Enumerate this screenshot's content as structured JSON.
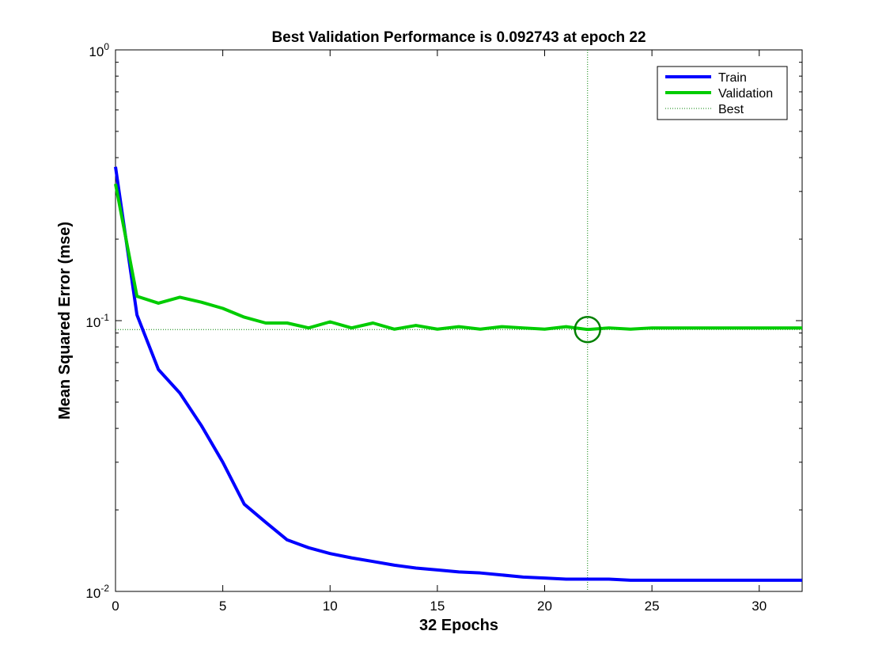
{
  "chart_data": {
    "type": "line",
    "title": "Best Validation Performance is 0.092743 at epoch 22",
    "xlabel": "32 Epochs",
    "ylabel": "Mean Squared Error  (mse)",
    "xlim": [
      0,
      32
    ],
    "ylim": [
      0.01,
      1
    ],
    "yscale": "log",
    "x_ticks": [
      0,
      5,
      10,
      15,
      20,
      25,
      30
    ],
    "x_tick_labels": [
      "0",
      "5",
      "10",
      "15",
      "20",
      "25",
      "30"
    ],
    "y_ticks": [
      {
        "value": 1,
        "base": "10",
        "exp": "0"
      },
      {
        "value": 0.1,
        "base": "10",
        "exp": "-1"
      },
      {
        "value": 0.01,
        "base": "10",
        "exp": "-2"
      }
    ],
    "grid": false,
    "legend_position": "top-right",
    "x": [
      0,
      1,
      2,
      3,
      4,
      5,
      6,
      7,
      8,
      9,
      10,
      11,
      12,
      13,
      14,
      15,
      16,
      17,
      18,
      19,
      20,
      21,
      22,
      23,
      24,
      25,
      26,
      27,
      28,
      29,
      30,
      31,
      32
    ],
    "series": [
      {
        "name": "Train",
        "color": "#0000ff",
        "style": "solid",
        "values": [
          0.37,
          0.105,
          0.066,
          0.054,
          0.041,
          0.03,
          0.021,
          0.018,
          0.0155,
          0.0145,
          0.0138,
          0.0133,
          0.0129,
          0.0125,
          0.0122,
          0.012,
          0.0118,
          0.0117,
          0.0115,
          0.0113,
          0.0112,
          0.0111,
          0.0111,
          0.0111,
          0.011,
          0.011,
          0.011,
          0.011,
          0.011,
          0.011,
          0.011,
          0.011,
          0.011
        ]
      },
      {
        "name": "Validation",
        "color": "#00cc00",
        "style": "solid",
        "values": [
          0.32,
          0.123,
          0.116,
          0.122,
          0.117,
          0.111,
          0.103,
          0.098,
          0.098,
          0.094,
          0.099,
          0.094,
          0.098,
          0.093,
          0.096,
          0.093,
          0.095,
          0.093,
          0.095,
          0.094,
          0.093,
          0.095,
          0.092743,
          0.094,
          0.093,
          0.094,
          0.094,
          0.094,
          0.094,
          0.094,
          0.094,
          0.094,
          0.094
        ]
      }
    ],
    "best": {
      "name": "Best",
      "epoch": 22,
      "value": 0.092743,
      "color": "#008000",
      "style": "dotted",
      "marker": "circle"
    }
  }
}
